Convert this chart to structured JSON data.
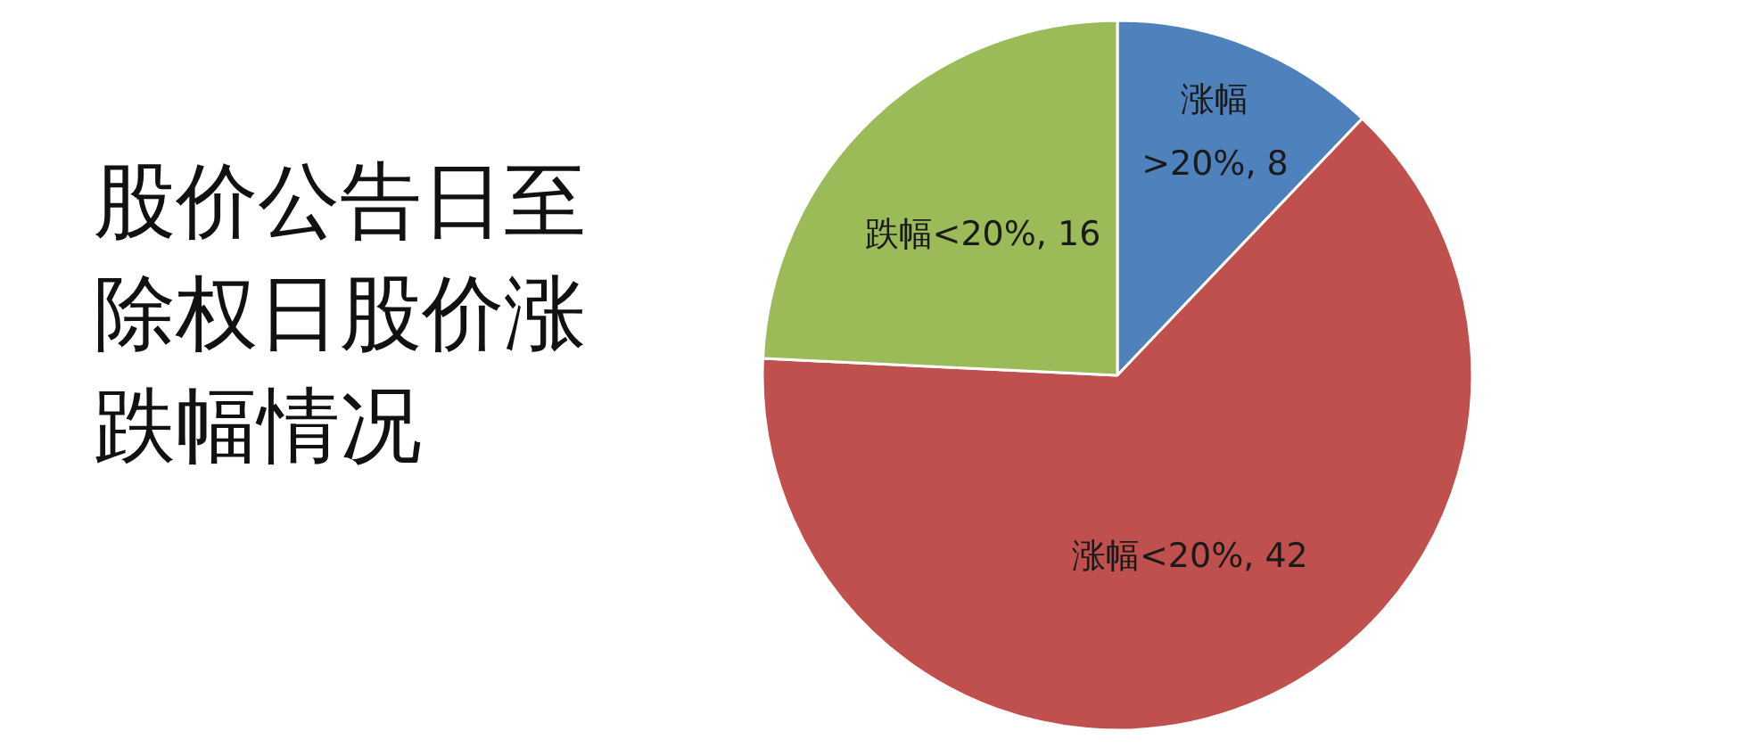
{
  "chart_data": {
    "type": "pie",
    "title": "股价公告日至除权日股价涨跌幅情况",
    "categories": [
      "涨幅>20%",
      "涨幅<20%",
      "跌幅<20%"
    ],
    "values": [
      8,
      42,
      16
    ],
    "value_labels": [
      ", 8",
      ", 42",
      ", 16"
    ],
    "colors": [
      "#4f81bd",
      "#c0504d",
      "#9bbb59"
    ]
  }
}
